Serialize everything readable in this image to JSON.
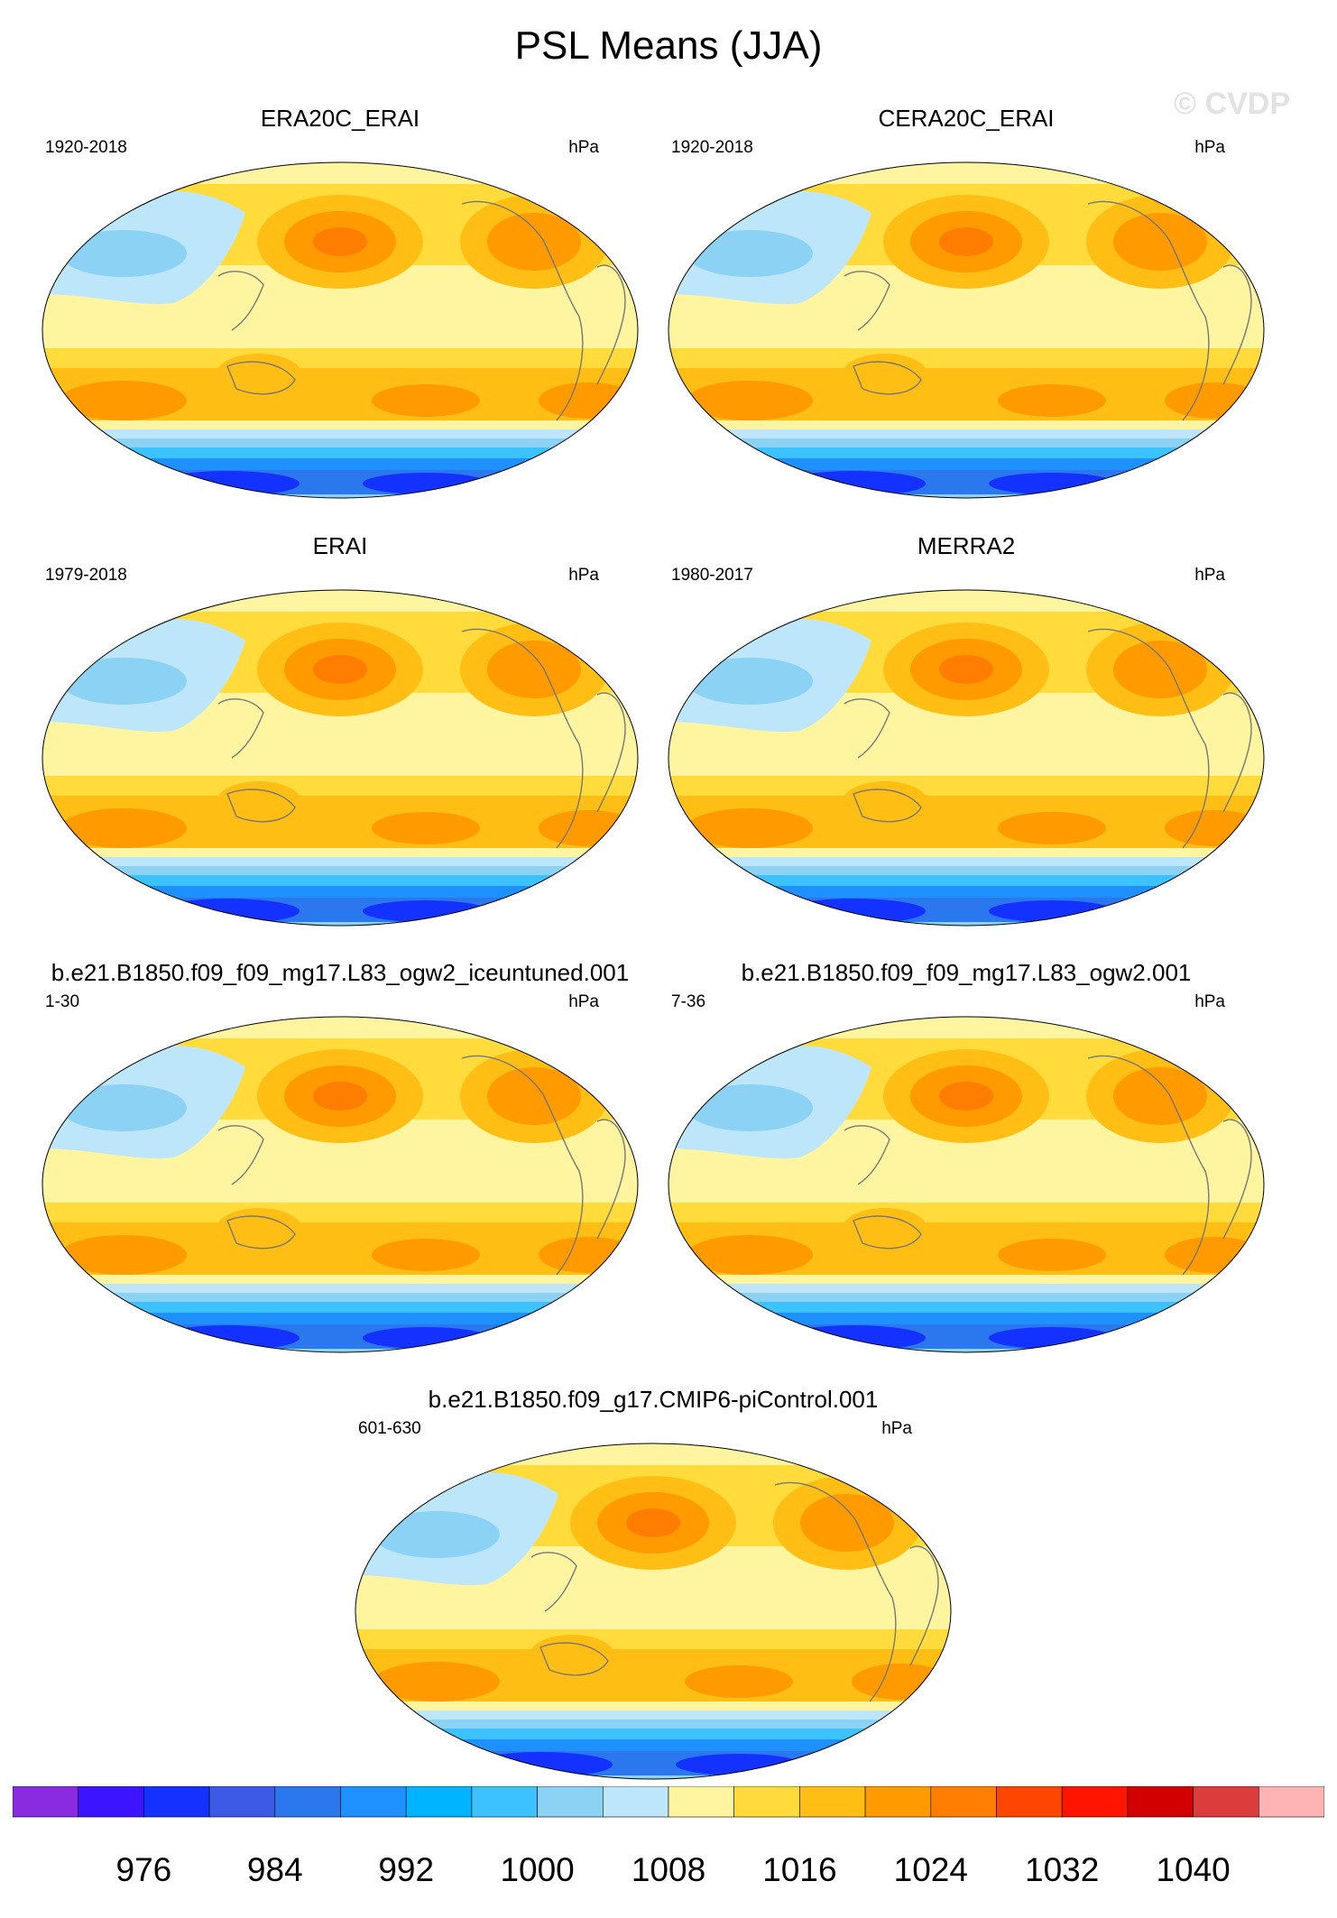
{
  "title": "PSL Means (JJA)",
  "watermark": "© CVDP",
  "chart_data": [
    {
      "type": "heatmap",
      "title": "ERA20C_ERAI",
      "period": "1920-2018",
      "units": "hPa"
    },
    {
      "type": "heatmap",
      "title": "CERA20C_ERAI",
      "period": "1920-2018",
      "units": "hPa"
    },
    {
      "type": "heatmap",
      "title": "ERAI",
      "period": "1979-2018",
      "units": "hPa"
    },
    {
      "type": "heatmap",
      "title": "MERRA2",
      "period": "1980-2017",
      "units": "hPa"
    },
    {
      "type": "heatmap",
      "title": "b.e21.B1850.f09_f09_mg17.L83_ogw2_iceuntuned.001",
      "period": "1-30",
      "units": "hPa"
    },
    {
      "type": "heatmap",
      "title": "b.e21.B1850.f09_f09_mg17.L83_ogw2.001",
      "period": "7-36",
      "units": "hPa"
    },
    {
      "type": "heatmap",
      "title": "b.e21.B1850.f09_g17.CMIP6-piControl.001",
      "period": "601-630",
      "units": "hPa"
    }
  ],
  "colorbar": {
    "labels": [
      "976",
      "984",
      "992",
      "1000",
      "1008",
      "1016",
      "1024",
      "1032",
      "1040"
    ],
    "colors": [
      "#8a2be2",
      "#3c14ff",
      "#1432ff",
      "#3c5ae6",
      "#2b78ee",
      "#1e90ff",
      "#00b4ff",
      "#3cc3ff",
      "#8cd2f5",
      "#bee6fa",
      "#fff5a0",
      "#ffdc3c",
      "#ffbe14",
      "#ff9b00",
      "#ff7d00",
      "#ff4600",
      "#ff1400",
      "#d20000",
      "#dc3c3c",
      "#ffb4b4"
    ]
  }
}
